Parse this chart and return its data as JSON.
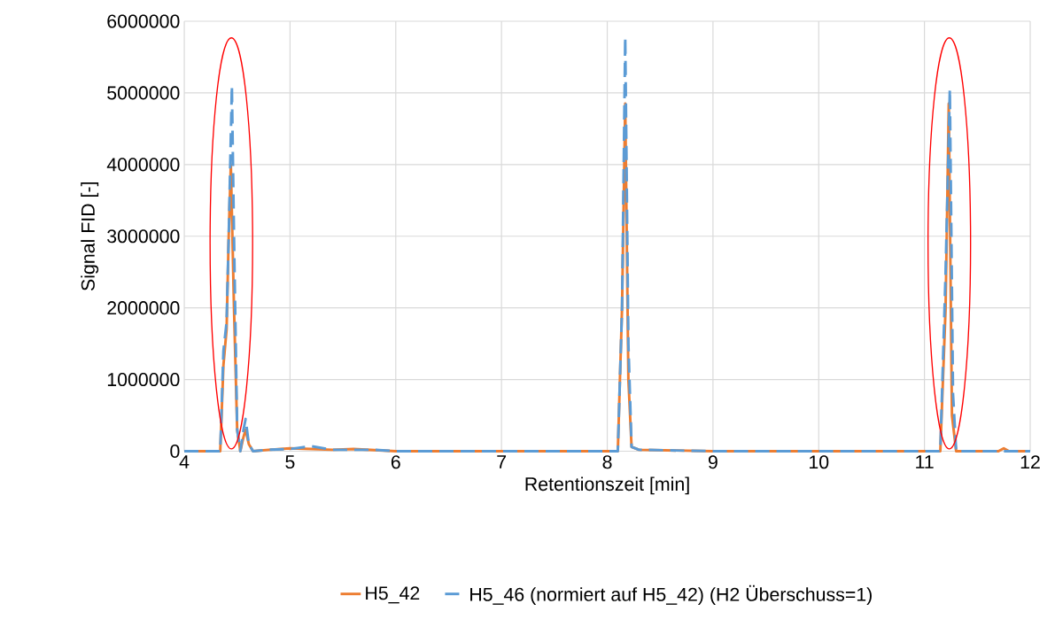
{
  "chart_data": {
    "type": "line",
    "xlabel": "Retentionszeit [min]",
    "ylabel": "Signal FID [-]",
    "xlim": [
      4,
      12
    ],
    "xticks": [
      4,
      5,
      6,
      7,
      8,
      9,
      10,
      11,
      12
    ],
    "ylim": [
      0,
      6000000
    ],
    "yticks": [
      0,
      1000000,
      2000000,
      3000000,
      4000000,
      5000000,
      6000000
    ],
    "grid": true,
    "legend": "bottom",
    "marker": "none",
    "series": [
      {
        "name": "H5_42",
        "color": "#ed7d31",
        "line_style": "solid",
        "x": [
          4,
          4.34,
          4.37,
          4.4,
          4.42,
          4.44,
          4.47,
          4.5,
          4.53,
          4.56,
          4.58,
          4.61,
          4.65,
          4.8,
          5.0,
          5.2,
          5.4,
          5.6,
          6,
          7,
          8.1,
          8.14,
          8.17,
          8.2,
          8.23,
          8.3,
          9,
          10,
          11.15,
          11.2,
          11.23,
          11.26,
          11.3,
          11.7,
          11.75,
          11.8,
          12
        ],
        "values": [
          0,
          0,
          1200000,
          1700000,
          3000000,
          4000000,
          2000000,
          300000,
          0,
          200000,
          300000,
          100000,
          0,
          20000,
          40000,
          30000,
          20000,
          30000,
          0,
          0,
          0,
          2000000,
          4850000,
          1000000,
          60000,
          20000,
          0,
          0,
          0,
          2000000,
          4850000,
          500000,
          0,
          0,
          40000,
          0,
          0
        ]
      },
      {
        "name": "H5_46 (normiert auf H5_42) (H2 Überschuss=1)",
        "color": "#5b9bd5",
        "line_style": "dashed",
        "x": [
          4,
          4.34,
          4.37,
          4.4,
          4.42,
          4.45,
          4.47,
          4.5,
          4.53,
          4.56,
          4.58,
          4.61,
          4.65,
          4.8,
          5.0,
          5.2,
          5.4,
          5.8,
          6,
          7,
          8.1,
          8.14,
          8.17,
          8.2,
          8.23,
          8.3,
          9,
          10,
          11.15,
          11.2,
          11.24,
          11.27,
          11.3,
          12
        ],
        "values": [
          0,
          0,
          1400000,
          1800000,
          3000000,
          5100000,
          3000000,
          300000,
          0,
          300000,
          450000,
          100000,
          0,
          20000,
          30000,
          70000,
          20000,
          20000,
          0,
          0,
          0,
          2000000,
          5780000,
          1500000,
          60000,
          20000,
          0,
          0,
          0,
          2500000,
          5050000,
          800000,
          0,
          0
        ]
      }
    ]
  }
}
